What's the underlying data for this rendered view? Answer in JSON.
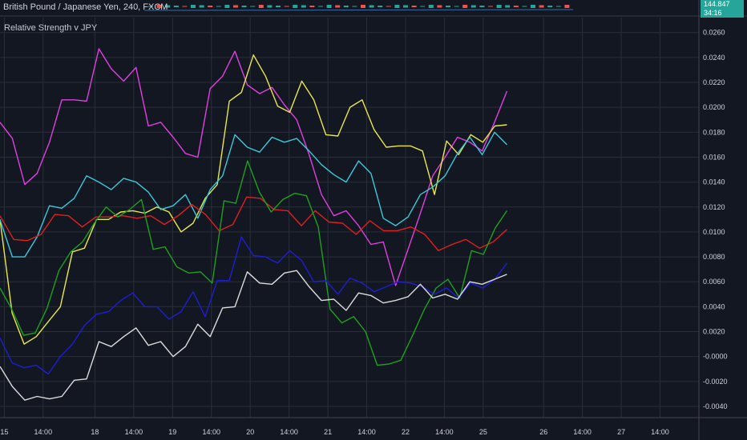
{
  "header": {
    "symbol_title": "British Pound / Japanese Yen, 240, FXCM",
    "last_price": "144.847",
    "countdown": "34:16"
  },
  "indicator": {
    "title": "Relative Strength v JPY"
  },
  "colors": {
    "background": "#131722",
    "grid": "#2a2e39",
    "axis_text": "#d1d4dc",
    "price_badge": "#26a69a",
    "candle_up": "#26a69a",
    "candle_down": "#ef5350"
  },
  "chart_data": {
    "type": "line",
    "title": "Relative Strength v JPY",
    "xlabel": "",
    "ylabel": "",
    "grid": true,
    "legend": "none",
    "ylim": [
      -0.0049,
      0.0272
    ],
    "y_ticks": [
      0.026,
      0.024,
      0.022,
      0.02,
      0.018,
      0.016,
      0.014,
      0.012,
      0.01,
      0.008,
      0.006,
      0.004,
      0.002,
      0.0,
      -0.002,
      -0.004
    ],
    "y_tick_labels": [
      "0.0260",
      "0.0240",
      "0.0220",
      "0.0200",
      "0.0180",
      "0.0160",
      "0.0140",
      "0.0120",
      "0.0100",
      "0.0080",
      "0.0060",
      "0.0040",
      "0.0020",
      "-0.0000",
      "-0.0020",
      "-0.0040"
    ],
    "x_tick_labels": [
      "15",
      "14:00",
      "18",
      "14:00",
      "19",
      "14:00",
      "20",
      "14:00",
      "21",
      "14:00",
      "22",
      "14:00",
      "25",
      "26",
      "14:00",
      "27",
      "14:00"
    ],
    "x_tick_bars": [
      1,
      10,
      22,
      31,
      40,
      49,
      58,
      67,
      76,
      85,
      94,
      103,
      112,
      126,
      135,
      144,
      153
    ],
    "x_range_bars": [
      0,
      162
    ],
    "series": [
      {
        "color": "#e040e0",
        "values": [
          0.0188,
          0.0175,
          0.0138,
          0.0147,
          0.0172,
          0.0206,
          0.0206,
          0.0205,
          0.0247,
          0.0231,
          0.0221,
          0.0232,
          0.0185,
          0.0188,
          0.0176,
          0.0163,
          0.016,
          0.0215,
          0.0225,
          0.0245,
          0.0218,
          0.0211,
          0.0216,
          0.0202,
          0.019,
          0.0162,
          0.013,
          0.0113,
          0.0117,
          0.0105,
          0.009,
          0.0092,
          0.0057,
          0.0086,
          0.0115,
          0.0145,
          0.016,
          0.0176,
          0.0172,
          0.0165,
          0.0188,
          0.0213
        ]
      },
      {
        "color": "#e8e84a",
        "values": [
          0.011,
          0.0035,
          0.001,
          0.0016,
          0.0028,
          0.004,
          0.0084,
          0.0087,
          0.011,
          0.011,
          0.0116,
          0.0117,
          0.0115,
          0.012,
          0.0116,
          0.01,
          0.0107,
          0.0127,
          0.0138,
          0.0205,
          0.0212,
          0.0242,
          0.0225,
          0.0201,
          0.0196,
          0.0221,
          0.0206,
          0.0178,
          0.0177,
          0.02,
          0.0206,
          0.0182,
          0.0168,
          0.0169,
          0.0169,
          0.0165,
          0.013,
          0.0173,
          0.0162,
          0.0178,
          0.0172,
          0.0185,
          0.0186
        ]
      },
      {
        "color": "#3cc8d8",
        "values": [
          0.011,
          0.008,
          0.008,
          0.0096,
          0.0121,
          0.0119,
          0.0127,
          0.0145,
          0.014,
          0.0134,
          0.0143,
          0.014,
          0.0132,
          0.0118,
          0.0121,
          0.013,
          0.0111,
          0.0134,
          0.0145,
          0.0178,
          0.0168,
          0.0164,
          0.0176,
          0.0172,
          0.0175,
          0.0165,
          0.0154,
          0.0146,
          0.014,
          0.0157,
          0.0147,
          0.0111,
          0.0105,
          0.0112,
          0.013,
          0.0136,
          0.0145,
          0.0163,
          0.0176,
          0.0162,
          0.018,
          0.017
        ]
      },
      {
        "color": "#e02020",
        "values": [
          0.0113,
          0.0094,
          0.0093,
          0.0098,
          0.0114,
          0.0113,
          0.0104,
          0.0112,
          0.0112,
          0.0113,
          0.0111,
          0.0113,
          0.0106,
          0.0113,
          0.0122,
          0.0114,
          0.0101,
          0.0106,
          0.0128,
          0.0127,
          0.0118,
          0.0117,
          0.0105,
          0.0117,
          0.0108,
          0.0107,
          0.0098,
          0.0109,
          0.0101,
          0.0101,
          0.0104,
          0.0098,
          0.0085,
          0.009,
          0.0094,
          0.0087,
          0.0092,
          0.0102
        ]
      },
      {
        "color": "#1fa01f",
        "values": [
          0.0055,
          0.0038,
          0.0017,
          0.0019,
          0.0039,
          0.0069,
          0.0084,
          0.0092,
          0.0107,
          0.012,
          0.0112,
          0.0118,
          0.0126,
          0.0086,
          0.0088,
          0.0072,
          0.0067,
          0.0068,
          0.0059,
          0.0125,
          0.0123,
          0.0157,
          0.0132,
          0.0116,
          0.0126,
          0.0131,
          0.0129,
          0.0104,
          0.0038,
          0.0027,
          0.0032,
          0.002,
          -0.0007,
          -0.0006,
          -0.0003,
          0.0017,
          0.0038,
          0.0055,
          0.0062,
          0.0047,
          0.0085,
          0.0082,
          0.0103,
          0.0117
        ]
      },
      {
        "color": "#1e1ed2",
        "values": [
          0.0015,
          -0.0005,
          -0.0009,
          -0.0007,
          -0.0014,
          0.0,
          0.001,
          0.0025,
          0.0034,
          0.0036,
          0.0045,
          0.0051,
          0.004,
          0.004,
          0.003,
          0.0036,
          0.0052,
          0.0032,
          0.0061,
          0.0061,
          0.0096,
          0.0081,
          0.008,
          0.0075,
          0.0085,
          0.0077,
          0.006,
          0.0061,
          0.005,
          0.0063,
          0.0059,
          0.0052,
          0.0056,
          0.006,
          0.0059,
          0.0056,
          0.005,
          0.0055,
          0.0047,
          0.0059,
          0.0055,
          0.0062,
          0.0075
        ]
      },
      {
        "color": "#dcdcdc",
        "values": [
          -0.0008,
          -0.0024,
          -0.0035,
          -0.0032,
          -0.0034,
          -0.0032,
          -0.0019,
          -0.0018,
          0.0012,
          0.0008,
          0.0016,
          0.0023,
          0.0009,
          0.0012,
          0.0,
          0.0008,
          0.0026,
          0.0016,
          0.0039,
          0.004,
          0.0068,
          0.0059,
          0.0058,
          0.0067,
          0.0069,
          0.0056,
          0.0045,
          0.0046,
          0.0037,
          0.0051,
          0.0049,
          0.0043,
          0.0045,
          0.0048,
          0.0058,
          0.0047,
          0.005,
          0.0046,
          0.006,
          0.0058,
          0.0062,
          0.0066
        ]
      }
    ]
  }
}
